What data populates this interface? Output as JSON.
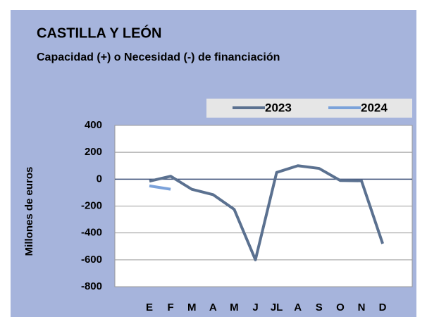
{
  "chart_data": {
    "type": "line",
    "title": "CASTILLA Y LEÓN",
    "subtitle": "Capacidad (+) o Necesidad (-) de financiación",
    "y_label": "Millones de euros",
    "categories": [
      "E",
      "F",
      "M",
      "A",
      "M",
      "J",
      "JL",
      "A",
      "S",
      "O",
      "N",
      "D"
    ],
    "series": [
      {
        "name": "2023",
        "color": "#5b7190",
        "values": [
          -15,
          22,
          -75,
          -115,
          -225,
          -600,
          50,
          100,
          80,
          -10,
          -12,
          -480
        ]
      },
      {
        "name": "2024",
        "color": "#7ba2da",
        "values": [
          -50,
          -75,
          null,
          null,
          null,
          null,
          null,
          null,
          null,
          null,
          null,
          null
        ]
      }
    ],
    "ylim": [
      -800,
      400
    ],
    "yticks": [
      -800,
      -600,
      -400,
      -200,
      0,
      200,
      400
    ],
    "grid": true
  }
}
